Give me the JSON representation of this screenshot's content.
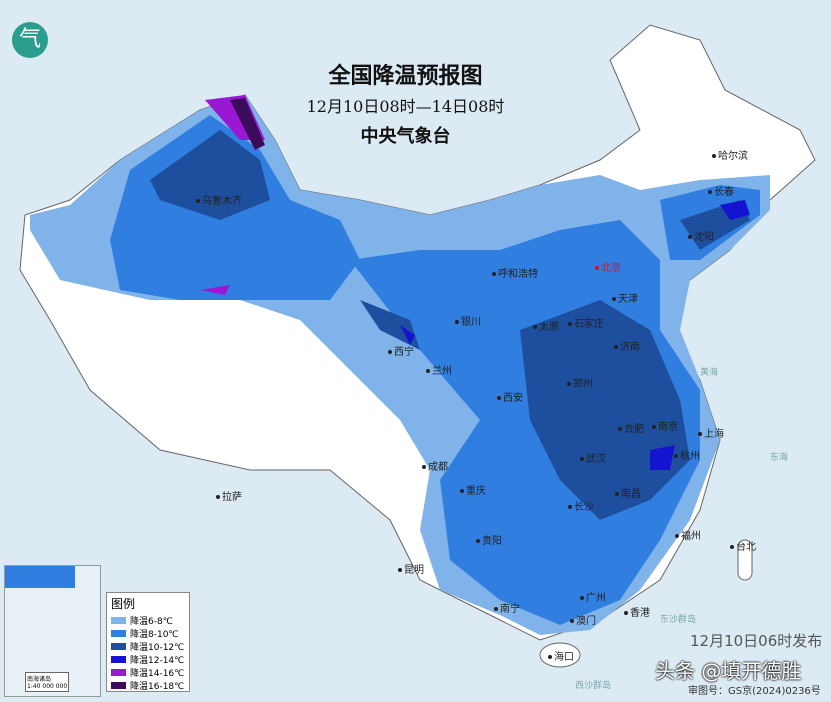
{
  "header": {
    "title": "全国降温预报图",
    "period": "12月10日08时—14日08时",
    "issuer": "中央气象台",
    "logo_glyph": "气"
  },
  "legend": {
    "title": "图例",
    "items": [
      {
        "label": "降温6-8℃",
        "color": "#7fb3ea"
      },
      {
        "label": "降温8-10℃",
        "color": "#2f7ee0"
      },
      {
        "label": "降温10-12℃",
        "color": "#1e4f9e"
      },
      {
        "label": "降温12-14℃",
        "color": "#1414d0"
      },
      {
        "label": "降温14-16℃",
        "color": "#9a18d4"
      },
      {
        "label": "降温16-18℃",
        "color": "#3c0c5c"
      }
    ]
  },
  "cities": [
    {
      "name": "哈尔滨",
      "capital": false
    },
    {
      "name": "长春",
      "capital": false
    },
    {
      "name": "沈阳",
      "capital": false
    },
    {
      "name": "乌鲁木齐",
      "capital": false
    },
    {
      "name": "呼和浩特",
      "capital": false
    },
    {
      "name": "北京",
      "capital": true
    },
    {
      "name": "天津",
      "capital": false
    },
    {
      "name": "石家庄",
      "capital": false
    },
    {
      "name": "太原",
      "capital": false
    },
    {
      "name": "银川",
      "capital": false
    },
    {
      "name": "济南",
      "capital": false
    },
    {
      "name": "西宁",
      "capital": false
    },
    {
      "name": "兰州",
      "capital": false
    },
    {
      "name": "郑州",
      "capital": false
    },
    {
      "name": "西安",
      "capital": false
    },
    {
      "name": "合肥",
      "capital": false
    },
    {
      "name": "南京",
      "capital": false
    },
    {
      "name": "上海",
      "capital": false
    },
    {
      "name": "武汉",
      "capital": false
    },
    {
      "name": "杭州",
      "capital": false
    },
    {
      "name": "成都",
      "capital": false
    },
    {
      "name": "重庆",
      "capital": false
    },
    {
      "name": "长沙",
      "capital": false
    },
    {
      "name": "南昌",
      "capital": false
    },
    {
      "name": "拉萨",
      "capital": false
    },
    {
      "name": "福州",
      "capital": false
    },
    {
      "name": "台北",
      "capital": false
    },
    {
      "name": "贵阳",
      "capital": false
    },
    {
      "name": "昆明",
      "capital": false
    },
    {
      "name": "南宁",
      "capital": false
    },
    {
      "name": "广州",
      "capital": false
    },
    {
      "name": "澳门",
      "capital": false
    },
    {
      "name": "香港",
      "capital": false
    },
    {
      "name": "海口",
      "capital": false
    }
  ],
  "seas": {
    "east_sea": "东海",
    "yellow_sea": "黄海",
    "dongsha": "东沙群岛",
    "xisha": "西沙群岛"
  },
  "inset": {
    "scale": "1:40 000 000",
    "title": "南海诸岛"
  },
  "footer": {
    "map_number": "审图号：GS京(2024)0236号",
    "published": "12月10日06时发布",
    "watermark": "头条 @填开德胜"
  }
}
